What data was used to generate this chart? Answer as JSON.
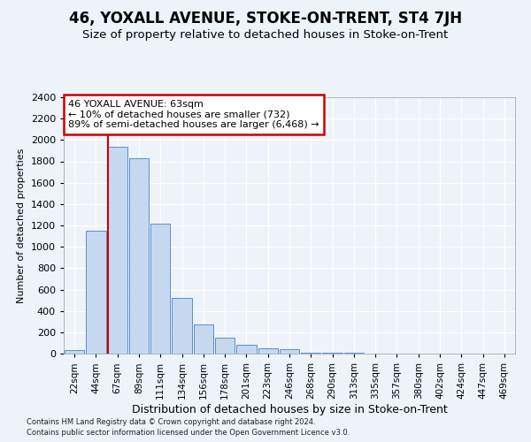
{
  "title": "46, YOXALL AVENUE, STOKE-ON-TRENT, ST4 7JH",
  "subtitle": "Size of property relative to detached houses in Stoke-on-Trent",
  "xlabel": "Distribution of detached houses by size in Stoke-on-Trent",
  "ylabel": "Number of detached properties",
  "footnote1": "Contains HM Land Registry data © Crown copyright and database right 2024.",
  "footnote2": "Contains public sector information licensed under the Open Government Licence v3.0.",
  "categories": [
    "22sqm",
    "44sqm",
    "67sqm",
    "89sqm",
    "111sqm",
    "134sqm",
    "156sqm",
    "178sqm",
    "201sqm",
    "223sqm",
    "246sqm",
    "268sqm",
    "290sqm",
    "313sqm",
    "335sqm",
    "357sqm",
    "380sqm",
    "402sqm",
    "424sqm",
    "447sqm",
    "469sqm"
  ],
  "values": [
    30,
    1150,
    1940,
    1830,
    1220,
    520,
    270,
    150,
    80,
    50,
    40,
    10,
    5,
    5,
    3,
    2,
    2,
    2,
    2,
    2,
    2
  ],
  "bar_color": "#c5d8f0",
  "bar_edge_color": "#5b8fcc",
  "vline_color": "#cc0000",
  "vline_x_idx": 2,
  "annotation_line1": "46 YOXALL AVENUE: 63sqm",
  "annotation_line2": "← 10% of detached houses are smaller (732)",
  "annotation_line3": "89% of semi-detached houses are larger (6,468) →",
  "annotation_box_color": "#ffffff",
  "annotation_box_edge": "#cc0000",
  "ylim": [
    0,
    2400
  ],
  "yticks": [
    0,
    200,
    400,
    600,
    800,
    1000,
    1200,
    1400,
    1600,
    1800,
    2000,
    2200,
    2400
  ],
  "background_color": "#eef2f9",
  "grid_color": "#ffffff",
  "title_fontsize": 12,
  "subtitle_fontsize": 9.5,
  "xlabel_fontsize": 9,
  "ylabel_fontsize": 8,
  "tick_fontsize": 8,
  "xtick_fontsize": 7.5
}
